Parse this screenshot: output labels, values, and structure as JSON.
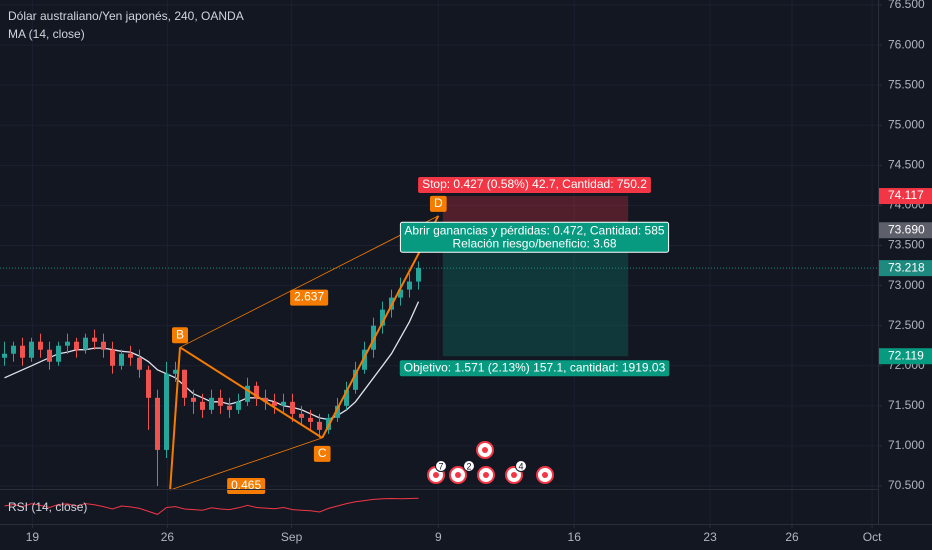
{
  "chart_data": {
    "type": "candlestick",
    "title": "Dólar australiano/Yen japonés, 240, OANDA",
    "indicator_label": "MA (14, close)",
    "up_color": "#26a69a",
    "down_color": "#ef5350",
    "ylim": [
      70.5,
      76.5
    ],
    "yticks": [
      {
        "value": 70.5,
        "label": "70.500"
      },
      {
        "value": 71,
        "label": "71.000"
      },
      {
        "value": 71.5,
        "label": "71.500"
      },
      {
        "value": 72,
        "label": "72.000"
      },
      {
        "value": 72.5,
        "label": "72.500"
      },
      {
        "value": 73,
        "label": "73.000"
      },
      {
        "value": 73.5,
        "label": "73.500"
      },
      {
        "value": 74,
        "label": "74.000"
      },
      {
        "value": 74.5,
        "label": "74.500"
      },
      {
        "value": 75,
        "label": "75.000"
      },
      {
        "value": 75.5,
        "label": "75.500"
      },
      {
        "value": 76,
        "label": "76.000"
      },
      {
        "value": 76.5,
        "label": "76.500"
      }
    ],
    "xlim": [
      0,
      97.5
    ],
    "xticks": [
      {
        "value": 3.6,
        "label": "19"
      },
      {
        "value": 18.6,
        "label": "26"
      },
      {
        "value": 32.4,
        "label": "Sep"
      },
      {
        "value": 48.7,
        "label": "9"
      },
      {
        "value": 63.8,
        "label": "16"
      },
      {
        "value": 78.9,
        "label": "23"
      },
      {
        "value": 88,
        "label": "26"
      },
      {
        "value": 96.9,
        "label": "Oct"
      }
    ],
    "grid": true,
    "open": [
      72.1,
      72.15,
      72.25,
      72.1,
      72.3,
      72.2,
      72.05,
      72.25,
      72.3,
      72.2,
      72.35,
      72.3,
      72.2,
      72.0,
      72.15,
      72.1,
      71.95,
      71.6,
      70.95,
      71.9,
      71.95,
      71.6,
      71.55,
      71.45,
      71.6,
      71.5,
      71.45,
      71.55,
      71.75,
      71.6,
      71.55,
      71.5,
      71.55,
      71.4,
      71.35,
      71.3,
      71.2,
      71.35,
      71.5,
      71.7,
      71.95,
      72.2,
      72.5,
      72.7,
      72.85,
      72.95,
      73.05
    ],
    "high": [
      72.3,
      72.3,
      72.35,
      72.35,
      72.4,
      72.3,
      72.3,
      72.4,
      72.35,
      72.4,
      72.45,
      72.4,
      72.3,
      72.2,
      72.25,
      72.2,
      72.0,
      71.7,
      72.05,
      72.05,
      71.95,
      71.7,
      71.65,
      71.7,
      71.7,
      71.6,
      71.65,
      71.85,
      71.8,
      71.7,
      71.65,
      71.65,
      71.65,
      71.5,
      71.45,
      71.4,
      71.4,
      71.6,
      71.8,
      72.05,
      72.3,
      72.6,
      72.8,
      72.95,
      73.1,
      73.15,
      73.3
    ],
    "low": [
      72.0,
      72.05,
      72.0,
      72.05,
      72.1,
      71.95,
      72.0,
      72.15,
      72.1,
      72.15,
      72.2,
      72.1,
      71.9,
      71.95,
      72.0,
      71.85,
      71.2,
      70.5,
      70.85,
      71.8,
      71.5,
      71.4,
      71.35,
      71.4,
      71.4,
      71.35,
      71.4,
      71.5,
      71.5,
      71.45,
      71.4,
      71.4,
      71.3,
      71.25,
      71.2,
      71.1,
      71.15,
      71.3,
      71.45,
      71.65,
      71.9,
      72.1,
      72.4,
      72.6,
      72.75,
      72.85,
      72.95
    ],
    "close": [
      72.15,
      72.25,
      72.1,
      72.3,
      72.2,
      72.05,
      72.25,
      72.3,
      72.2,
      72.35,
      72.3,
      72.2,
      72.0,
      72.15,
      72.1,
      71.95,
      71.6,
      70.95,
      71.9,
      71.95,
      71.6,
      71.55,
      71.45,
      71.6,
      71.5,
      71.45,
      71.55,
      71.75,
      71.6,
      71.55,
      71.5,
      71.55,
      71.4,
      71.35,
      71.3,
      71.2,
      71.35,
      71.5,
      71.7,
      71.95,
      72.2,
      72.5,
      72.7,
      72.85,
      72.95,
      73.05,
      73.22
    ],
    "ma": {
      "color": "#e0e3eb",
      "values": [
        71.85,
        71.9,
        71.95,
        72.0,
        72.05,
        72.1,
        72.15,
        72.17,
        72.2,
        72.2,
        72.22,
        72.22,
        72.2,
        72.18,
        72.17,
        72.12,
        72.05,
        71.95,
        71.9,
        71.85,
        71.75,
        71.65,
        71.6,
        71.55,
        71.55,
        71.52,
        71.55,
        71.6,
        71.6,
        71.58,
        71.55,
        71.5,
        71.48,
        71.45,
        71.4,
        71.35,
        71.33,
        71.38,
        71.45,
        71.55,
        71.7,
        71.85,
        72.0,
        72.15,
        72.35,
        72.55,
        72.8
      ]
    },
    "current_price": {
      "value": 73.218,
      "label": "73.218",
      "color": "#1e8a7f"
    },
    "position": {
      "start": 49.2,
      "end": 69.8,
      "stop": {
        "value": 74.117,
        "label": "74.117",
        "color": "#f23645"
      },
      "entry": {
        "value": 73.69,
        "label": "73.690",
        "color": "#5d606b"
      },
      "target": {
        "value": 72.119,
        "label": "72.119",
        "color": "#089981"
      },
      "stop_text": "Stop: 0.427 (0.58%) 42.7, Cantidad: 750.2",
      "entry_text": [
        "Abrir ganancias y pérdidas: 0.472, Cantidad: 585",
        "Relación riesgo/beneficio: 3.68"
      ],
      "target_text": "Objetivo: 1.571 (2.13%) 157.1, cantidad: 1919.03"
    },
    "pattern": {
      "color": "#f57c00",
      "points": [
        {
          "x": 18.9,
          "y": 70.45
        },
        {
          "label": "B",
          "x": 20,
          "y": 72.23
        },
        {
          "label": "C",
          "x": 35.8,
          "y": 71.1
        },
        {
          "label": "D",
          "x": 48.7,
          "y": 73.87
        }
      ],
      "ratios": [
        "0.465",
        "2.637"
      ]
    },
    "rsi": {
      "label": "RSI (14, close)",
      "color": "#f23645",
      "ylim": [
        0,
        100
      ],
      "values": [
        50,
        55,
        48,
        58,
        52,
        45,
        55,
        57,
        50,
        58,
        54,
        48,
        40,
        50,
        47,
        42,
        32,
        22,
        45,
        48,
        40,
        38,
        36,
        44,
        40,
        38,
        44,
        52,
        45,
        43,
        41,
        45,
        38,
        36,
        34,
        30,
        42,
        50,
        58,
        64,
        68,
        72,
        74,
        75,
        74,
        75,
        76
      ]
    },
    "events": [
      "7",
      "2",
      "4"
    ]
  }
}
